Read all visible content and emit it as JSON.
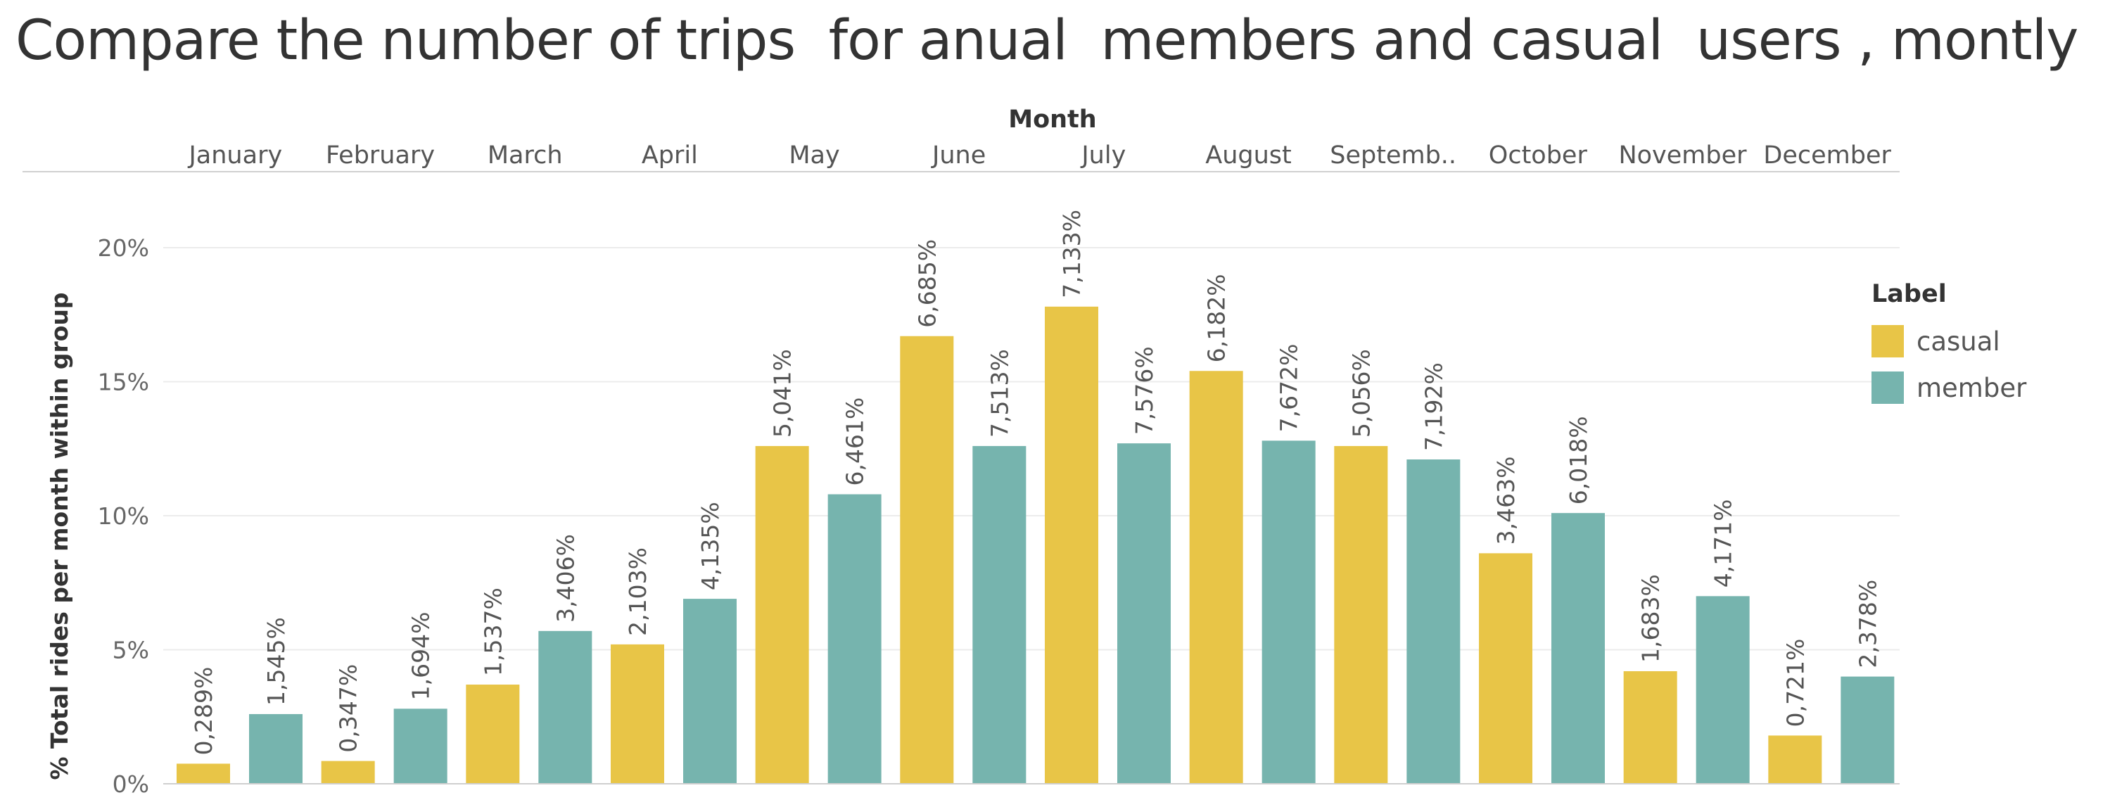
{
  "title": "Compare the number of trips  for anual  members and casual  users , montly",
  "chart_data": {
    "type": "bar",
    "x_header": "Month",
    "categories": [
      "January",
      "February",
      "March",
      "April",
      "May",
      "June",
      "July",
      "August",
      "Septemb..",
      "October",
      "November",
      "December"
    ],
    "ylabel": "% Total rides per month within group",
    "ylim": [
      0,
      21.5
    ],
    "yticks": [
      0,
      5,
      10,
      15,
      20
    ],
    "ytick_labels": [
      "0%",
      "5%",
      "10%",
      "15%",
      "20%"
    ],
    "legend": {
      "title": "Label",
      "position": "right"
    },
    "series": [
      {
        "name": "casual",
        "color": "#E8C547",
        "values": [
          0.75,
          0.85,
          3.7,
          5.2,
          12.6,
          16.7,
          17.8,
          15.4,
          12.6,
          8.6,
          4.2,
          1.8
        ],
        "labels": [
          "0,289%",
          "0,347%",
          "1,537%",
          "2,103%",
          "5,041%",
          "6,685%",
          "7,133%",
          "6,182%",
          "5,056%",
          "3,463%",
          "1,683%",
          "0,721%"
        ]
      },
      {
        "name": "member",
        "color": "#76B4AE",
        "values": [
          2.6,
          2.8,
          5.7,
          6.9,
          10.8,
          12.6,
          12.7,
          12.8,
          12.1,
          10.1,
          7.0,
          4.0
        ],
        "labels": [
          "1,545%",
          "1,694%",
          "3,406%",
          "4,135%",
          "6,461%",
          "7,513%",
          "7,576%",
          "7,672%",
          "7,192%",
          "6,018%",
          "4,171%",
          "2,378%"
        ]
      }
    ]
  }
}
